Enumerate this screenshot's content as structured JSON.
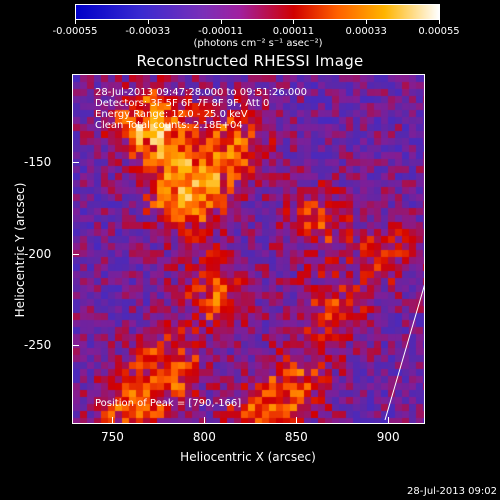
{
  "colorbar": {
    "tick_labels": [
      "-0.00055",
      "-0.00033",
      "-0.00011",
      "0.00011",
      "0.00033",
      "0.00055"
    ],
    "units": "(photons cm⁻² s⁻¹ asec⁻²)"
  },
  "title": "Reconstructed RHESSI Image",
  "annotations": {
    "time_range": "28-Jul-2013 09:47:28.000 to 09:51:26.000",
    "detectors": "Detectors: 3F 5F 6F 7F 8F 9F, Att 0",
    "energy": "Energy Range: 12.0 - 25.0 keV",
    "clean": "Clean    Total counts: 2.18E+04",
    "peak": "Position of Peak = [790,-166]"
  },
  "axes": {
    "xlabel": "Heliocentric X (arcsec)",
    "ylabel": "Heliocentric Y (arcsec)",
    "xticks": [
      "750",
      "800",
      "850",
      "900"
    ],
    "yticks": [
      "-150",
      "-200",
      "-250"
    ]
  },
  "timestamp": "28-Jul-2013 09:02",
  "chart_data": {
    "type": "heatmap",
    "title": "Reconstructed RHESSI Image",
    "xlabel": "Heliocentric X (arcsec)",
    "ylabel": "Heliocentric Y (arcsec)",
    "xlim": [
      728,
      920
    ],
    "ylim": [
      -293,
      -102
    ],
    "value_range": [
      -0.00055,
      0.00055
    ],
    "peak_position": [
      790,
      -166
    ],
    "sources": [
      {
        "x": 790,
        "y": -166,
        "value": 0.00055
      },
      {
        "x": 770,
        "y": -130,
        "value": 0.0005
      },
      {
        "x": 815,
        "y": -140,
        "value": 0.00035
      },
      {
        "x": 805,
        "y": -220,
        "value": 0.0003
      },
      {
        "x": 780,
        "y": -260,
        "value": 0.00032
      },
      {
        "x": 760,
        "y": -285,
        "value": 0.0003
      },
      {
        "x": 850,
        "y": -270,
        "value": 0.00028
      },
      {
        "x": 860,
        "y": -180,
        "value": 0.00025
      },
      {
        "x": 870,
        "y": -230,
        "value": 0.00024
      },
      {
        "x": 900,
        "y": -200,
        "value": 0.0002
      },
      {
        "x": 830,
        "y": -290,
        "value": 0.00026
      }
    ]
  }
}
